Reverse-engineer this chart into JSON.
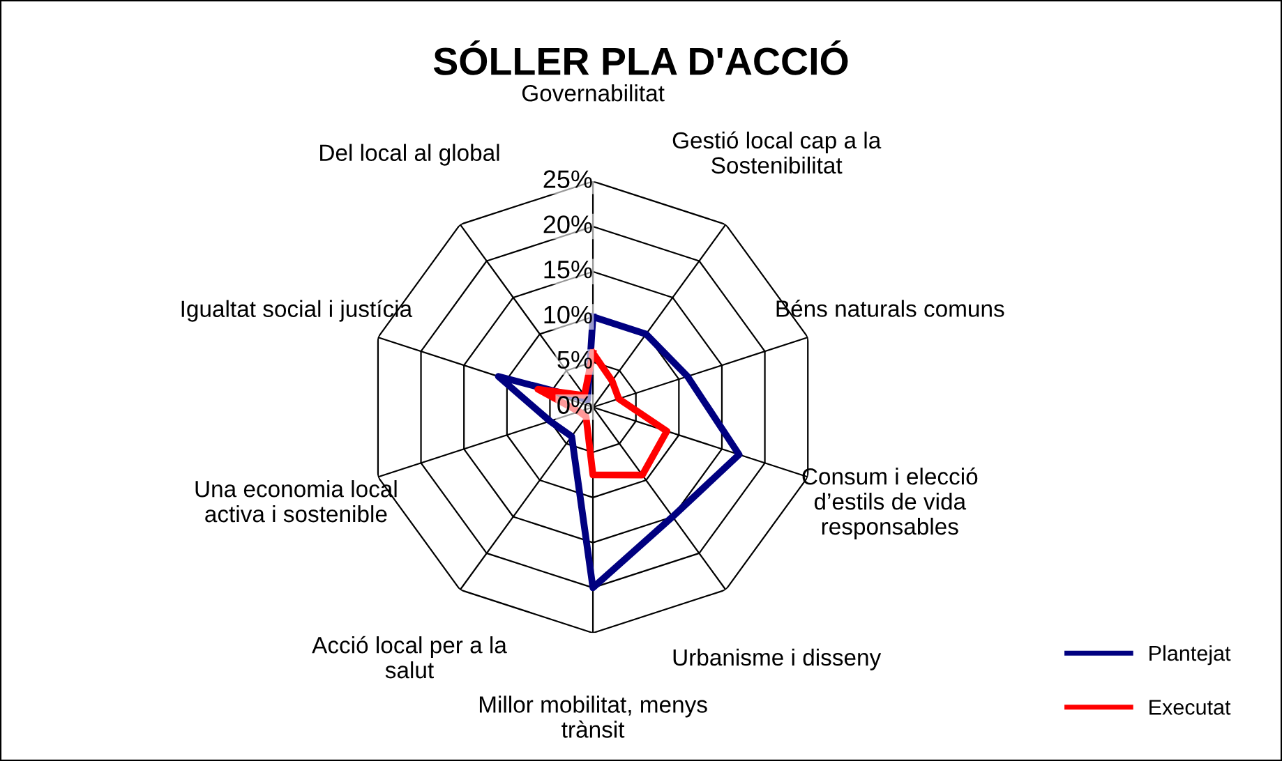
{
  "chart_data": {
    "type": "radar",
    "title": "SÓLLER PLA D'ACCIÓ",
    "categories": [
      "Governabilitat",
      "Gestió local cap a la\nSostenibilitat",
      "Béns naturals comuns",
      "Consum i elecció\nd’estils de vida\nresponsables",
      "Urbanisme i disseny",
      "Millor mobilitat, menys\ntrànsit",
      "Acció local per a la\nsalut",
      "Una economia local\nactiva i sostenible",
      "Igualtat social i justícia",
      "Del local al global"
    ],
    "series": [
      {
        "name": "Plantejat",
        "color": "#000080",
        "values": [
          10,
          10,
          11,
          17,
          15,
          20,
          4,
          5,
          11,
          1
        ]
      },
      {
        "name": "Executat",
        "color": "#ff0000",
        "values": [
          6,
          3.6,
          3,
          8.6,
          9.3,
          7.5,
          1.3,
          1.6,
          6.4,
          1.6
        ]
      }
    ],
    "ylim": [
      0,
      25
    ],
    "yticks": [
      {
        "value": 0,
        "label": "0%"
      },
      {
        "value": 5,
        "label": "5%"
      },
      {
        "value": 10,
        "label": "10%"
      },
      {
        "value": 15,
        "label": "15%"
      },
      {
        "value": 20,
        "label": "20%"
      },
      {
        "value": 25,
        "label": "25%"
      }
    ],
    "grid": true,
    "legend": "bottom right",
    "marker": "none",
    "line_style": "solid"
  }
}
